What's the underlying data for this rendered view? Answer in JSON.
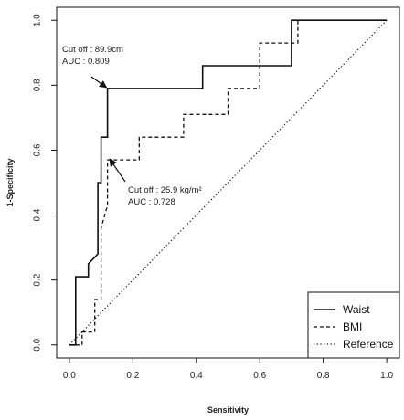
{
  "chart_data": {
    "type": "line",
    "title": "",
    "xlabel": "Sensitivity",
    "ylabel": "1-Specificity",
    "xlim": [
      -0.04,
      1.04
    ],
    "ylim": [
      -0.04,
      1.04
    ],
    "x_ticks": [
      "0.0",
      "0.2",
      "0.4",
      "0.6",
      "0.8",
      "1.0"
    ],
    "y_ticks": [
      "0.0",
      "0.2",
      "0.4",
      "0.6",
      "0.8",
      "1.0"
    ],
    "tick_values": [
      0,
      0.2,
      0.4,
      0.6,
      0.8,
      1.0
    ],
    "grid": false,
    "legend": {
      "placement": "bottom-right",
      "entries": [
        "Waist",
        "BMI",
        "Reference"
      ]
    },
    "series": [
      {
        "name": "Waist",
        "style": "solid",
        "x": [
          0.0,
          0.02,
          0.02,
          0.06,
          0.06,
          0.09,
          0.09,
          0.1,
          0.1,
          0.12,
          0.12,
          0.42,
          0.42,
          0.7,
          0.7,
          1.0
        ],
        "y": [
          0.0,
          0.0,
          0.21,
          0.21,
          0.25,
          0.28,
          0.5,
          0.5,
          0.64,
          0.64,
          0.79,
          0.79,
          0.86,
          0.86,
          1.0,
          1.0
        ]
      },
      {
        "name": "BMI",
        "style": "dashed",
        "x": [
          0.0,
          0.04,
          0.04,
          0.08,
          0.08,
          0.1,
          0.1,
          0.12,
          0.12,
          0.14,
          0.14,
          0.22,
          0.22,
          0.26,
          0.26,
          0.36,
          0.36,
          0.4,
          0.4,
          0.5,
          0.5,
          0.6,
          0.6,
          0.7,
          0.7,
          0.72,
          0.72,
          1.0
        ],
        "y": [
          0.0,
          0.0,
          0.04,
          0.04,
          0.14,
          0.14,
          0.36,
          0.43,
          0.57,
          0.57,
          0.57,
          0.57,
          0.64,
          0.64,
          0.64,
          0.64,
          0.71,
          0.71,
          0.71,
          0.71,
          0.79,
          0.79,
          0.93,
          0.93,
          0.93,
          0.93,
          1.0,
          1.0
        ]
      },
      {
        "name": "Reference",
        "style": "dotted",
        "x": [
          0.0,
          1.0
        ],
        "y": [
          0.0,
          1.0
        ]
      }
    ],
    "annotations": [
      {
        "id": "waist",
        "lines": [
          "Cut off : 89.9cm",
          "AUC : 0.809"
        ],
        "arrow_to": [
          0.12,
          0.79
        ]
      },
      {
        "id": "bmi",
        "lines": [
          "Cut off : 25.9 kg/m²",
          "AUC : 0.728"
        ],
        "arrow_to": [
          0.13,
          0.57
        ]
      }
    ]
  }
}
